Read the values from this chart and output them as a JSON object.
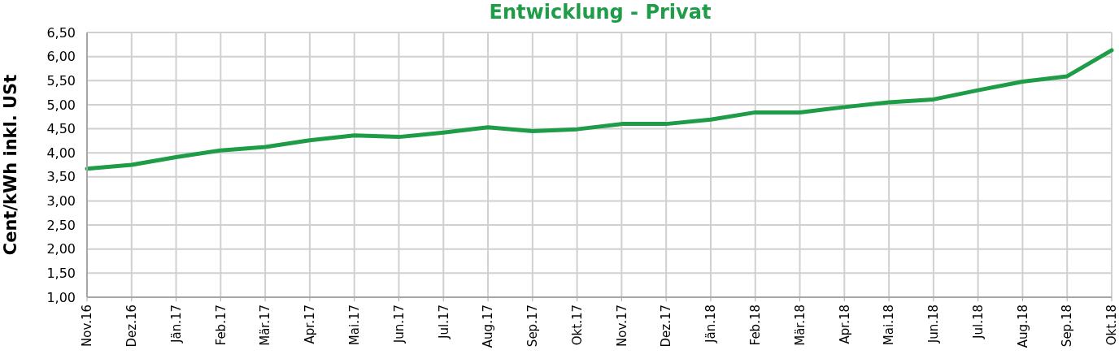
{
  "chart_data": {
    "type": "line",
    "title": "Entwicklung - Privat",
    "ylabel": "Cent/kWh inkl. USt",
    "categories": [
      "Nov.16",
      "Dez.16",
      "Jän.17",
      "Feb.17",
      "Mär.17",
      "Apr.17",
      "Mai.17",
      "Jun.17",
      "Jul.17",
      "Aug.17",
      "Sep.17",
      "Okt.17",
      "Nov.17",
      "Dez.17",
      "Jän.18",
      "Feb.18",
      "Mär.18",
      "Apr.18",
      "Mai.18",
      "Jun.18",
      "Jul.18",
      "Aug.18",
      "Sep.18",
      "Okt.18"
    ],
    "values": [
      3.67,
      3.75,
      3.91,
      4.05,
      4.12,
      4.26,
      4.36,
      4.33,
      4.42,
      4.53,
      4.45,
      4.49,
      4.6,
      4.6,
      4.69,
      4.84,
      4.84,
      4.95,
      5.05,
      5.11,
      5.3,
      5.48,
      5.59,
      6.13
    ],
    "color": "#1e9c48",
    "ylim": [
      1,
      6.5
    ],
    "yticks": [
      {
        "value": 1,
        "label": "1,00"
      },
      {
        "value": 1.5,
        "label": "1,50"
      },
      {
        "value": 2,
        "label": "2,00"
      },
      {
        "value": 2.5,
        "label": "2,50"
      },
      {
        "value": 3,
        "label": "3,00"
      },
      {
        "value": 3.5,
        "label": "3,50"
      },
      {
        "value": 4,
        "label": "4,00"
      },
      {
        "value": 4.5,
        "label": "4,50"
      },
      {
        "value": 5,
        "label": "5,00"
      },
      {
        "value": 5.5,
        "label": "5,50"
      },
      {
        "value": 6,
        "label": "6,00"
      },
      {
        "value": 6.5,
        "label": "6,50"
      }
    ],
    "grid": true
  }
}
